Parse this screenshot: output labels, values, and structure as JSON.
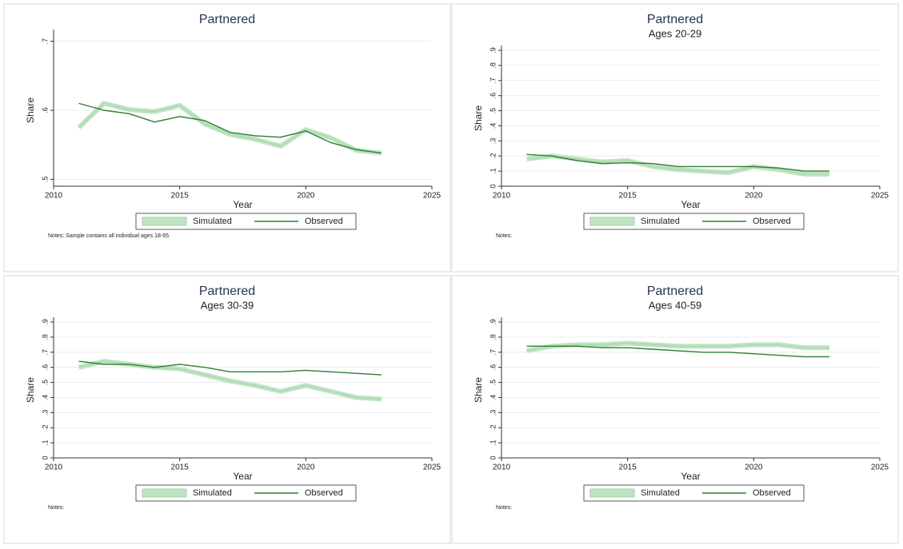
{
  "chart_data": [
    {
      "type": "line",
      "title": "Partnered",
      "ylabel": "Share",
      "xlabel": "Year",
      "x": [
        2011,
        2012,
        2013,
        2014,
        2015,
        2016,
        2017,
        2018,
        2019,
        2020,
        2021,
        2022,
        2023
      ],
      "series": [
        {
          "name": "Simulated",
          "color": "#bfe3c2",
          "values": [
            0.575,
            0.61,
            0.601,
            0.598,
            0.607,
            0.58,
            0.565,
            0.558,
            0.548,
            0.572,
            0.56,
            0.542,
            0.538
          ]
        },
        {
          "name": "Observed",
          "color": "#2e7d32",
          "values": [
            0.61,
            0.6,
            0.595,
            0.583,
            0.591,
            0.585,
            0.568,
            0.563,
            0.561,
            0.57,
            0.553,
            0.543,
            0.538
          ]
        }
      ],
      "xlim": [
        2010,
        2025
      ],
      "xticks": [
        2010,
        2015,
        2020,
        2025
      ],
      "ylim": [
        0.49,
        0.71
      ],
      "yticks": [
        {
          "value": 0.5,
          "label": ".5"
        },
        {
          "value": 0.6,
          "label": ".6"
        },
        {
          "value": 0.7,
          "label": ".7"
        }
      ],
      "grid": true,
      "legend": "bottom",
      "notes": "Notes: Sample contains all individual ages 18-65."
    },
    {
      "type": "line",
      "title": "Partnered",
      "subtitle": "Ages 20-29",
      "ylabel": "Share",
      "xlabel": "Year",
      "x": [
        2011,
        2012,
        2013,
        2014,
        2015,
        2016,
        2017,
        2018,
        2019,
        2020,
        2021,
        2022,
        2023
      ],
      "series": [
        {
          "name": "Simulated",
          "color": "#bfe3c2",
          "values": [
            0.18,
            0.2,
            0.18,
            0.16,
            0.17,
            0.13,
            0.11,
            0.1,
            0.09,
            0.13,
            0.11,
            0.08,
            0.08
          ]
        },
        {
          "name": "Observed",
          "color": "#2e7d32",
          "values": [
            0.21,
            0.2,
            0.17,
            0.15,
            0.155,
            0.15,
            0.13,
            0.13,
            0.13,
            0.13,
            0.12,
            0.1,
            0.1
          ]
        }
      ],
      "xlim": [
        2010,
        2025
      ],
      "xticks": [
        2010,
        2015,
        2020,
        2025
      ],
      "ylim": [
        0,
        0.9
      ],
      "yticks": [
        0,
        {
          "value": 0.1,
          "label": ".1"
        },
        {
          "value": 0.2,
          "label": ".2"
        },
        {
          "value": 0.3,
          "label": ".3"
        },
        {
          "value": 0.4,
          "label": ".4"
        },
        {
          "value": 0.5,
          "label": ".5"
        },
        {
          "value": 0.6,
          "label": ".6"
        },
        {
          "value": 0.7,
          "label": ".7"
        },
        {
          "value": 0.8,
          "label": ".8"
        },
        {
          "value": 0.9,
          "label": ".9"
        }
      ],
      "grid": true,
      "legend": "bottom",
      "notes": "Notes:"
    },
    {
      "type": "line",
      "title": "Partnered",
      "subtitle": "Ages 30-39",
      "ylabel": "Share",
      "xlabel": "Year",
      "x": [
        2011,
        2012,
        2013,
        2014,
        2015,
        2016,
        2017,
        2018,
        2019,
        2020,
        2021,
        2022,
        2023
      ],
      "series": [
        {
          "name": "Simulated",
          "color": "#bfe3c2",
          "values": [
            0.6,
            0.64,
            0.62,
            0.6,
            0.59,
            0.55,
            0.51,
            0.48,
            0.44,
            0.48,
            0.44,
            0.4,
            0.39
          ]
        },
        {
          "name": "Observed",
          "color": "#2e7d32",
          "values": [
            0.64,
            0.62,
            0.62,
            0.6,
            0.62,
            0.6,
            0.57,
            0.57,
            0.57,
            0.58,
            0.57,
            0.56,
            0.55
          ]
        }
      ],
      "xlim": [
        2010,
        2025
      ],
      "xticks": [
        2010,
        2015,
        2020,
        2025
      ],
      "ylim": [
        0,
        0.9
      ],
      "yticks": [
        0,
        {
          "value": 0.1,
          "label": ".1"
        },
        {
          "value": 0.2,
          "label": ".2"
        },
        {
          "value": 0.3,
          "label": ".3"
        },
        {
          "value": 0.4,
          "label": ".4"
        },
        {
          "value": 0.5,
          "label": ".5"
        },
        {
          "value": 0.6,
          "label": ".6"
        },
        {
          "value": 0.7,
          "label": ".7"
        },
        {
          "value": 0.8,
          "label": ".8"
        },
        {
          "value": 0.9,
          "label": ".9"
        }
      ],
      "grid": true,
      "legend": "bottom",
      "notes": "Notes:"
    },
    {
      "type": "line",
      "title": "Partnered",
      "subtitle": "Ages 40-59",
      "ylabel": "Share",
      "xlabel": "Year",
      "x": [
        2011,
        2012,
        2013,
        2014,
        2015,
        2016,
        2017,
        2018,
        2019,
        2020,
        2021,
        2022,
        2023
      ],
      "series": [
        {
          "name": "Simulated",
          "color": "#bfe3c2",
          "values": [
            0.71,
            0.74,
            0.75,
            0.75,
            0.76,
            0.75,
            0.74,
            0.74,
            0.74,
            0.75,
            0.75,
            0.73,
            0.73
          ]
        },
        {
          "name": "Observed",
          "color": "#2e7d32",
          "values": [
            0.74,
            0.74,
            0.74,
            0.73,
            0.73,
            0.72,
            0.71,
            0.7,
            0.7,
            0.69,
            0.68,
            0.67,
            0.67
          ]
        }
      ],
      "xlim": [
        2010,
        2025
      ],
      "xticks": [
        2010,
        2015,
        2020,
        2025
      ],
      "ylim": [
        0,
        0.9
      ],
      "yticks": [
        0,
        {
          "value": 0.1,
          "label": ".1"
        },
        {
          "value": 0.2,
          "label": ".2"
        },
        {
          "value": 0.3,
          "label": ".3"
        },
        {
          "value": 0.4,
          "label": ".4"
        },
        {
          "value": 0.5,
          "label": ".5"
        },
        {
          "value": 0.6,
          "label": ".6"
        },
        {
          "value": 0.7,
          "label": ".7"
        },
        {
          "value": 0.8,
          "label": ".8"
        },
        {
          "value": 0.9,
          "label": ".9"
        }
      ],
      "grid": true,
      "legend": "bottom",
      "notes": "Notes:"
    }
  ]
}
